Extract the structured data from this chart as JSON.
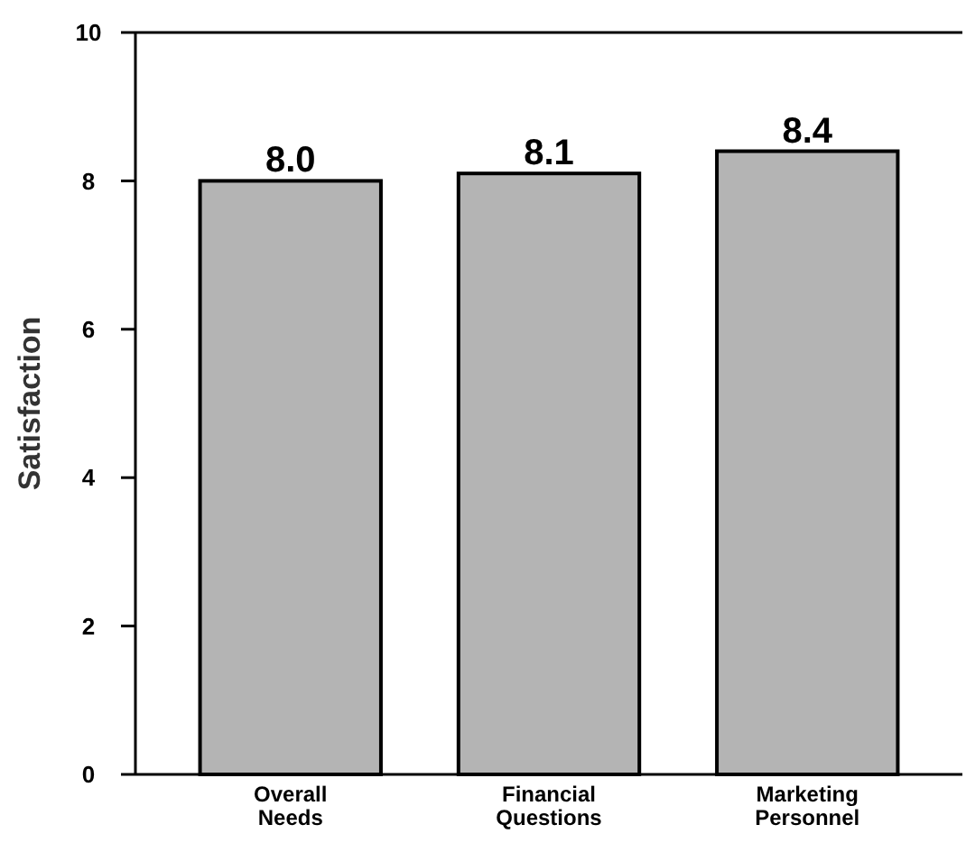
{
  "chart_data": {
    "type": "bar",
    "ylabel": "Satisfaction",
    "categories": [
      "Overall Needs",
      "Financial Questions",
      "Marketing Personnel"
    ],
    "values": [
      8.0,
      8.1,
      8.4
    ],
    "value_labels": [
      "8.0",
      "8.1",
      "8.4"
    ],
    "color": "#b4b4b4",
    "ylim": [
      0,
      10
    ],
    "yticks": [
      0,
      2,
      4,
      6,
      8,
      10
    ],
    "grid": false
  }
}
